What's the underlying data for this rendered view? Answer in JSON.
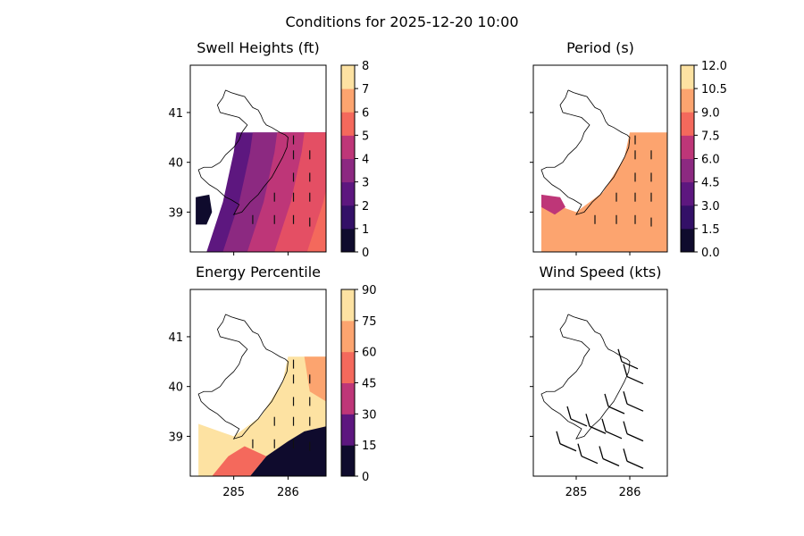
{
  "figure_title": "Conditions for 2025-12-20 10:00",
  "chart_data": [
    {
      "type": "heatmap",
      "title": "Swell Heights (ft)",
      "colorbar_ticks": [
        "0",
        "1",
        "2",
        "3",
        "4",
        "5",
        "6",
        "7",
        "8"
      ],
      "colorbar_range": [
        0,
        8
      ],
      "yticks": [
        "39",
        "40",
        "41"
      ],
      "xticks": [],
      "xlim": [
        284.2,
        286.7
      ],
      "ylim": [
        38.2,
        41.95
      ],
      "contour_bands": [
        {
          "offshore_lon": 284.85,
          "value": 2.5
        },
        {
          "offshore_lon": 285.15,
          "value": 3.5
        },
        {
          "offshore_lon": 285.6,
          "value": 4.5
        },
        {
          "offshore_lon": 286.1,
          "value": 5.5
        },
        {
          "offshore_lon": 286.7,
          "value": 6.5
        }
      ]
    },
    {
      "type": "heatmap",
      "title": "Period (s)",
      "colorbar_ticks": [
        "0.0",
        "1.5",
        "3.0",
        "4.5",
        "6.0",
        "7.5",
        "9.0",
        "10.5",
        "12.0"
      ],
      "colorbar_range": [
        0,
        12
      ],
      "yticks": [],
      "xticks": [],
      "xlim": [
        284.2,
        286.7
      ],
      "ylim": [
        38.2,
        41.95
      ],
      "dominant_value": 9.75
    },
    {
      "type": "heatmap",
      "title": "Energy Percentile",
      "colorbar_ticks": [
        "0",
        "15",
        "30",
        "45",
        "60",
        "75",
        "90"
      ],
      "colorbar_range": [
        0,
        90
      ],
      "yticks": [
        "39",
        "40",
        "41"
      ],
      "xticks": [
        "285",
        "286"
      ],
      "xlim": [
        284.2,
        286.7
      ],
      "ylim": [
        38.2,
        41.95
      ],
      "dominant_value": 82
    },
    {
      "type": "scatter",
      "title": "Wind Speed (kts)",
      "yticks": [],
      "xticks": [
        "285",
        "286"
      ],
      "xlim": [
        284.2,
        286.7
      ],
      "ylim": [
        38.2,
        41.95
      ],
      "barb_stations": [
        {
          "lon": 284.7,
          "lat": 38.85
        },
        {
          "lon": 285.1,
          "lat": 38.6
        },
        {
          "lon": 285.5,
          "lat": 38.55
        },
        {
          "lon": 285.95,
          "lat": 38.5
        },
        {
          "lon": 284.9,
          "lat": 39.35
        },
        {
          "lon": 285.25,
          "lat": 39.2
        },
        {
          "lon": 285.55,
          "lat": 39.1
        },
        {
          "lon": 285.95,
          "lat": 39.05
        },
        {
          "lon": 285.6,
          "lat": 39.6
        },
        {
          "lon": 285.95,
          "lat": 39.65
        },
        {
          "lon": 285.95,
          "lat": 40.2
        },
        {
          "lon": 285.85,
          "lat": 40.5
        }
      ]
    }
  ]
}
